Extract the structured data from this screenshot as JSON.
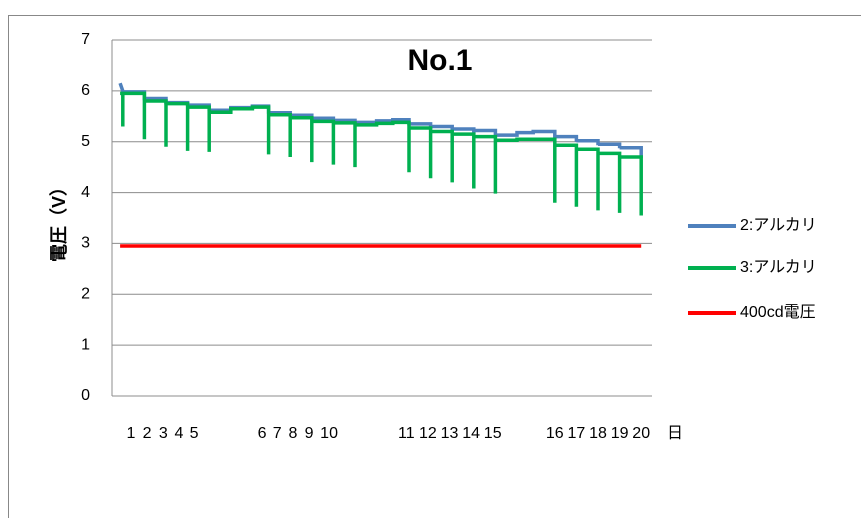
{
  "chart_data": {
    "type": "line",
    "title": "No.1",
    "y_label": "電圧（V）",
    "x_label": "日",
    "xlim": [
      0,
      100
    ],
    "ylim": [
      0,
      7
    ],
    "yticks": [
      0,
      1,
      2,
      3,
      4,
      5,
      6,
      7
    ],
    "grid": true,
    "legend": "right",
    "xticks": [
      {
        "value": 3.5,
        "label": "1"
      },
      {
        "value": 6.5,
        "label": "2"
      },
      {
        "value": 9.5,
        "label": "3"
      },
      {
        "value": 12.4,
        "label": "4"
      },
      {
        "value": 15.2,
        "label": "5"
      },
      {
        "value": 27.8,
        "label": "6"
      },
      {
        "value": 30.6,
        "label": "7"
      },
      {
        "value": 33.5,
        "label": "8"
      },
      {
        "value": 36.5,
        "label": "9"
      },
      {
        "value": 40.2,
        "label": "10"
      },
      {
        "value": 54.5,
        "label": "11"
      },
      {
        "value": 58.5,
        "label": "12"
      },
      {
        "value": 62.5,
        "label": "13"
      },
      {
        "value": 66.5,
        "label": "14"
      },
      {
        "value": 70.5,
        "label": "15"
      },
      {
        "value": 82,
        "label": "16"
      },
      {
        "value": 86,
        "label": "17"
      },
      {
        "value": 90,
        "label": "18"
      },
      {
        "value": 94,
        "label": "19"
      },
      {
        "value": 98,
        "label": "20"
      }
    ],
    "x": [
      1.5,
      2,
      2,
      2,
      6,
      6,
      6,
      10,
      10,
      10,
      14,
      14,
      14,
      18,
      18,
      18,
      22,
      22,
      22,
      26,
      26,
      26,
      29,
      29,
      29,
      33,
      33,
      33,
      37,
      37,
      37,
      41,
      41,
      41,
      45,
      45,
      45,
      49,
      49,
      49,
      52,
      52,
      52,
      55,
      55,
      55,
      59,
      59,
      59,
      63,
      63,
      63,
      67,
      67,
      67,
      71,
      71,
      71,
      75,
      75,
      75,
      78,
      78,
      78,
      82,
      82,
      82,
      86,
      86,
      86,
      90,
      90,
      90,
      94,
      94,
      94,
      98,
      98
    ],
    "series": [
      {
        "name": "2:アルカリ",
        "color": "#4f81bd",
        "values": [
          6.15,
          6.0,
          5.95,
          5.98,
          5.98,
          5.85,
          5.85,
          5.85,
          5.77,
          5.77,
          5.77,
          5.7,
          5.72,
          5.72,
          5.6,
          5.62,
          5.62,
          5.62,
          5.67,
          5.67,
          5.67,
          5.7,
          5.7,
          5.55,
          5.57,
          5.57,
          5.5,
          5.52,
          5.52,
          5.43,
          5.46,
          5.46,
          5.38,
          5.42,
          5.42,
          5.37,
          5.38,
          5.38,
          5.38,
          5.41,
          5.41,
          5.41,
          5.43,
          5.43,
          5.32,
          5.35,
          5.35,
          5.25,
          5.3,
          5.3,
          5.2,
          5.25,
          5.25,
          5.15,
          5.22,
          5.22,
          5.1,
          5.13,
          5.13,
          5.13,
          5.18,
          5.18,
          5.18,
          5.2,
          5.2,
          5.05,
          5.1,
          5.1,
          5.0,
          5.02,
          5.02,
          4.93,
          4.95,
          4.95,
          4.87,
          4.88,
          4.88,
          4.68
        ]
      },
      {
        "name": "3:アルカリ",
        "color": "#00b050",
        "values": [
          5.95,
          5.95,
          5.3,
          5.95,
          5.95,
          5.05,
          5.8,
          5.8,
          4.9,
          5.75,
          5.75,
          4.82,
          5.68,
          5.68,
          4.8,
          5.58,
          5.58,
          5.58,
          5.65,
          5.65,
          5.65,
          5.68,
          5.68,
          4.75,
          5.53,
          5.53,
          4.7,
          5.47,
          5.47,
          4.6,
          5.4,
          5.4,
          4.55,
          5.37,
          5.37,
          4.5,
          5.33,
          5.33,
          5.33,
          5.36,
          5.36,
          5.36,
          5.38,
          5.38,
          4.4,
          5.27,
          5.27,
          4.28,
          5.2,
          5.2,
          4.2,
          5.15,
          5.15,
          4.08,
          5.1,
          5.1,
          3.98,
          5.03,
          5.03,
          5.03,
          5.05,
          5.05,
          5.05,
          5.05,
          5.05,
          3.8,
          4.93,
          4.93,
          3.72,
          4.85,
          4.85,
          3.65,
          4.77,
          4.77,
          3.6,
          4.7,
          4.7,
          3.55
        ]
      },
      {
        "name": "400cd電圧",
        "color": "#ff0000",
        "values": [
          2.95,
          2.95,
          2.95,
          2.95,
          2.95,
          2.95,
          2.95,
          2.95,
          2.95,
          2.95,
          2.95,
          2.95,
          2.95,
          2.95,
          2.95,
          2.95,
          2.95,
          2.95,
          2.95,
          2.95,
          2.95,
          2.95,
          2.95,
          2.95,
          2.95,
          2.95,
          2.95,
          2.95,
          2.95,
          2.95,
          2.95,
          2.95,
          2.95,
          2.95,
          2.95,
          2.95,
          2.95,
          2.95,
          2.95,
          2.95,
          2.95,
          2.95,
          2.95,
          2.95,
          2.95,
          2.95,
          2.95,
          2.95,
          2.95,
          2.95,
          2.95,
          2.95,
          2.95,
          2.95,
          2.95,
          2.95,
          2.95,
          2.95,
          2.95,
          2.95,
          2.95,
          2.95,
          2.95,
          2.95,
          2.95,
          2.95,
          2.95,
          2.95,
          2.95,
          2.95,
          2.95,
          2.95,
          2.95,
          2.95,
          2.95,
          2.95,
          2.95,
          2.95
        ]
      }
    ]
  }
}
